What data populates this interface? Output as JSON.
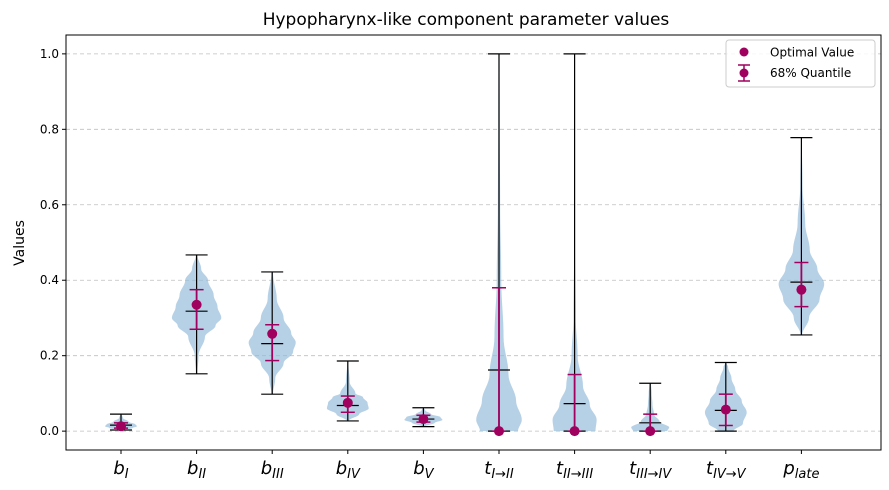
{
  "chart_data": {
    "type": "violin",
    "title": "Hypopharynx-like component parameter values",
    "ylabel": "Values",
    "xlabel": "",
    "ylim": [
      -0.05,
      1.05
    ],
    "yticks": [
      "0.0",
      "0.2",
      "0.4",
      "0.6",
      "0.8",
      "1.0"
    ],
    "grid": "y-dashed",
    "legend_position": "top-right",
    "colors": {
      "violin_fill": "#8fb8d9",
      "marker": "#a0005e",
      "whisker": "#000000",
      "grid": "#bfbfbf"
    },
    "legend": [
      {
        "label": "Optimal Value",
        "marker": "dot"
      },
      {
        "label": "68% Quantile",
        "marker": "errorbar"
      }
    ],
    "categories": [
      {
        "base": "b",
        "sub": "I"
      },
      {
        "base": "b",
        "sub": "II"
      },
      {
        "base": "b",
        "sub": "III"
      },
      {
        "base": "b",
        "sub": "IV"
      },
      {
        "base": "b",
        "sub": "V"
      },
      {
        "base": "t",
        "sub": "I→II"
      },
      {
        "base": "t",
        "sub": "II→III"
      },
      {
        "base": "t",
        "sub": "III→IV"
      },
      {
        "base": "t",
        "sub": "IV→V"
      },
      {
        "base": "p",
        "sub": "late"
      }
    ],
    "series": [
      {
        "min": 0.003,
        "max": 0.045,
        "median": 0.016,
        "optimal": 0.013,
        "q_low": 0.008,
        "q_high": 0.022,
        "density": [
          [
            0.003,
            0.03
          ],
          [
            0.008,
            0.3
          ],
          [
            0.013,
            0.42
          ],
          [
            0.018,
            0.38
          ],
          [
            0.025,
            0.2
          ],
          [
            0.035,
            0.05
          ],
          [
            0.045,
            0.01
          ]
        ]
      },
      {
        "min": 0.152,
        "max": 0.467,
        "median": 0.318,
        "optimal": 0.335,
        "q_low": 0.27,
        "q_high": 0.375,
        "density": [
          [
            0.152,
            0.02
          ],
          [
            0.2,
            0.05
          ],
          [
            0.25,
            0.22
          ],
          [
            0.28,
            0.5
          ],
          [
            0.3,
            0.65
          ],
          [
            0.33,
            0.55
          ],
          [
            0.36,
            0.45
          ],
          [
            0.4,
            0.3
          ],
          [
            0.43,
            0.12
          ],
          [
            0.467,
            0.02
          ]
        ]
      },
      {
        "min": 0.098,
        "max": 0.422,
        "median": 0.232,
        "optimal": 0.258,
        "q_low": 0.187,
        "q_high": 0.282,
        "density": [
          [
            0.098,
            0.02
          ],
          [
            0.14,
            0.08
          ],
          [
            0.18,
            0.3
          ],
          [
            0.21,
            0.55
          ],
          [
            0.235,
            0.62
          ],
          [
            0.26,
            0.5
          ],
          [
            0.3,
            0.3
          ],
          [
            0.35,
            0.12
          ],
          [
            0.42,
            0.02
          ]
        ]
      },
      {
        "min": 0.027,
        "max": 0.186,
        "median": 0.068,
        "optimal": 0.075,
        "q_low": 0.05,
        "q_high": 0.093,
        "density": [
          [
            0.027,
            0.02
          ],
          [
            0.045,
            0.3
          ],
          [
            0.06,
            0.55
          ],
          [
            0.075,
            0.52
          ],
          [
            0.09,
            0.4
          ],
          [
            0.1,
            0.2
          ],
          [
            0.13,
            0.05
          ],
          [
            0.186,
            0.01
          ]
        ]
      },
      {
        "min": 0.012,
        "max": 0.062,
        "median": 0.032,
        "optimal": 0.032,
        "q_low": 0.024,
        "q_high": 0.042,
        "density": [
          [
            0.012,
            0.03
          ],
          [
            0.022,
            0.3
          ],
          [
            0.03,
            0.5
          ],
          [
            0.037,
            0.45
          ],
          [
            0.045,
            0.2
          ],
          [
            0.055,
            0.05
          ],
          [
            0.062,
            0.01
          ]
        ]
      },
      {
        "min": 0.0,
        "max": 1.0,
        "median": 0.162,
        "optimal": 0.0,
        "q_low": 0.0,
        "q_high": 0.38,
        "density": [
          [
            0.0,
            0.5
          ],
          [
            0.03,
            0.6
          ],
          [
            0.08,
            0.45
          ],
          [
            0.15,
            0.25
          ],
          [
            0.25,
            0.12
          ],
          [
            0.4,
            0.06
          ],
          [
            0.6,
            0.03
          ],
          [
            0.8,
            0.02
          ],
          [
            1.0,
            0.015
          ]
        ]
      },
      {
        "min": 0.0,
        "max": 1.0,
        "median": 0.073,
        "optimal": 0.0,
        "q_low": 0.0,
        "q_high": 0.15,
        "density": [
          [
            0.0,
            0.55
          ],
          [
            0.03,
            0.58
          ],
          [
            0.07,
            0.4
          ],
          [
            0.12,
            0.22
          ],
          [
            0.2,
            0.08
          ],
          [
            0.3,
            0.03
          ],
          [
            0.5,
            0.01
          ],
          [
            0.8,
            0.0
          ],
          [
            1.0,
            0.0
          ]
        ]
      },
      {
        "min": 0.0,
        "max": 0.127,
        "median": 0.022,
        "optimal": 0.0,
        "q_low": 0.0,
        "q_high": 0.045,
        "density": [
          [
            0.0,
            0.45
          ],
          [
            0.01,
            0.5
          ],
          [
            0.025,
            0.25
          ],
          [
            0.045,
            0.1
          ],
          [
            0.07,
            0.06
          ],
          [
            0.1,
            0.04
          ],
          [
            0.127,
            0.02
          ]
        ]
      },
      {
        "min": 0.0,
        "max": 0.182,
        "median": 0.055,
        "optimal": 0.057,
        "q_low": 0.015,
        "q_high": 0.098,
        "density": [
          [
            0.0,
            0.2
          ],
          [
            0.02,
            0.45
          ],
          [
            0.05,
            0.55
          ],
          [
            0.08,
            0.42
          ],
          [
            0.11,
            0.25
          ],
          [
            0.14,
            0.15
          ],
          [
            0.17,
            0.06
          ],
          [
            0.182,
            0.01
          ]
        ]
      },
      {
        "min": 0.255,
        "max": 0.778,
        "median": 0.395,
        "optimal": 0.375,
        "q_low": 0.33,
        "q_high": 0.447,
        "density": [
          [
            0.255,
            0.02
          ],
          [
            0.3,
            0.2
          ],
          [
            0.35,
            0.48
          ],
          [
            0.39,
            0.6
          ],
          [
            0.43,
            0.42
          ],
          [
            0.48,
            0.22
          ],
          [
            0.55,
            0.1
          ],
          [
            0.65,
            0.03
          ],
          [
            0.778,
            0.01
          ]
        ]
      }
    ]
  }
}
